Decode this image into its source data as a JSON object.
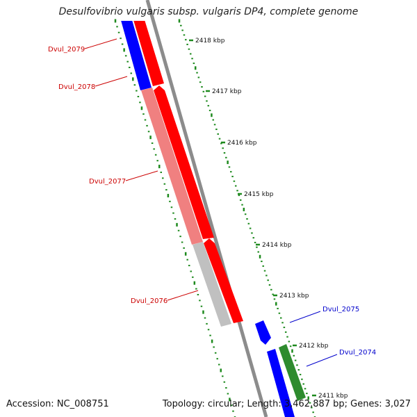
{
  "title": "Desulfovibrio vulgaris subsp. vulgaris DP4, complete genome",
  "footer": {
    "accession": "Accession: NC_008751",
    "summary": "Topology: circular; Length: 3,462,887 bp; Genes: 3,027"
  },
  "colors": {
    "backbone": "#8c8c8c",
    "ticks": "#1e8a1e",
    "forward_label": "#0000cc",
    "reverse_label": "#cc0000",
    "red_feature": "#ff0000",
    "blue_feature": "#0000ff",
    "pink_feature": "#f08080",
    "grey_feature": "#c0c0c0",
    "green_feature": "#2e8b2e"
  },
  "ruler_labels": [
    {
      "kbp": 2418,
      "text": "2418 kbp"
    },
    {
      "kbp": 2417,
      "text": "2417 kbp"
    },
    {
      "kbp": 2416,
      "text": "2416 kbp"
    },
    {
      "kbp": 2415,
      "text": "2415 kbp"
    },
    {
      "kbp": 2414,
      "text": "2414 kbp"
    },
    {
      "kbp": 2413,
      "text": "2413 kbp"
    },
    {
      "kbp": 2412,
      "text": "2412 kbp"
    },
    {
      "kbp": 2411,
      "text": "2411 kbp"
    }
  ],
  "genes": [
    {
      "id": "dvul-2079",
      "label": "Dvul_2079",
      "strand": "reverse"
    },
    {
      "id": "dvul-2078",
      "label": "Dvul_2078",
      "strand": "reverse"
    },
    {
      "id": "dvul-2077",
      "label": "Dvul_2077",
      "strand": "reverse"
    },
    {
      "id": "dvul-2076",
      "label": "Dvul_2076",
      "strand": "reverse"
    },
    {
      "id": "dvul-2075",
      "label": "Dvul_2075",
      "strand": "forward"
    },
    {
      "id": "dvul-2074",
      "label": "Dvul_2074",
      "strand": "forward"
    }
  ]
}
